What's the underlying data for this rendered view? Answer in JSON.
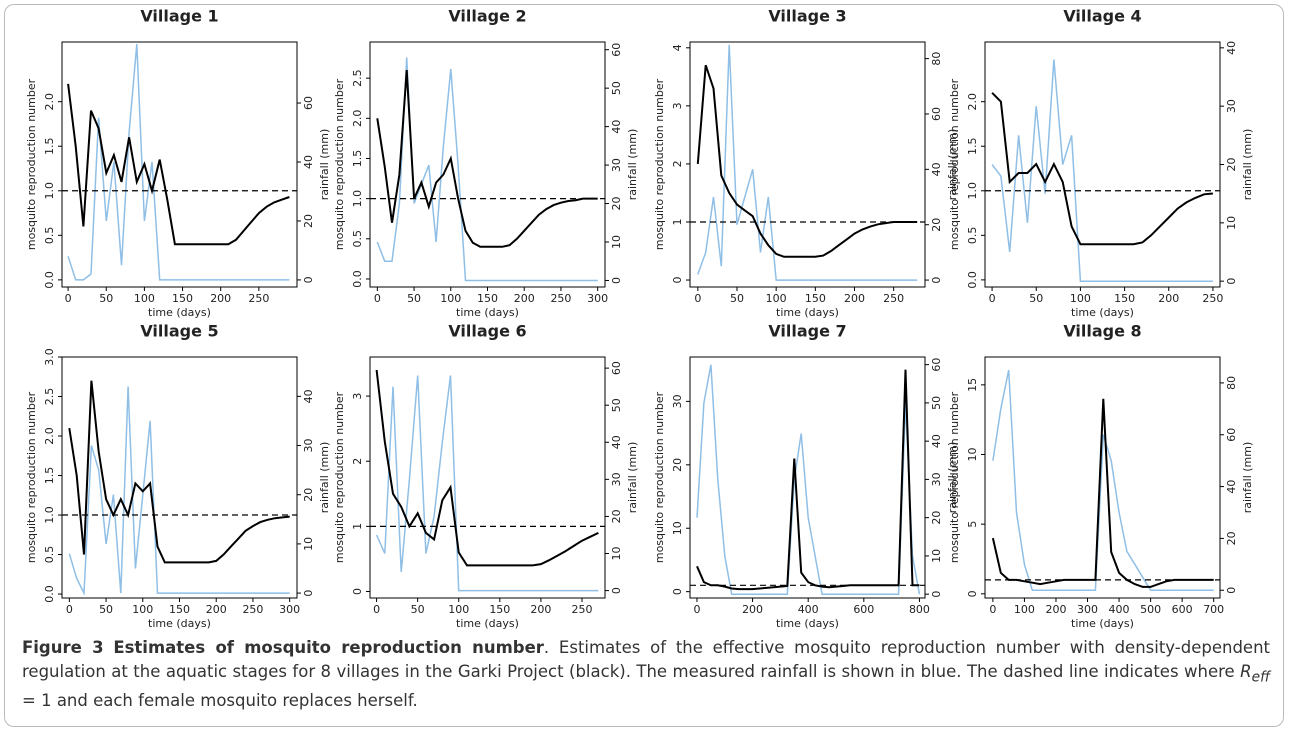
{
  "chart_data": [
    {
      "type": "line",
      "title": "Village 1",
      "xlabel": "time (days)",
      "ylabel": "mosquito reproduction number",
      "y2label": "rainfall (mm)",
      "x": [
        0,
        10,
        20,
        30,
        40,
        50,
        60,
        70,
        80,
        90,
        100,
        110,
        120,
        130,
        140,
        150,
        160,
        170,
        180,
        190,
        200,
        210,
        220,
        230,
        240,
        250,
        260,
        270,
        280,
        290
      ],
      "xlim": [
        -8,
        300
      ],
      "xticks": [
        0,
        50,
        100,
        150,
        200,
        250
      ],
      "ylim": [
        -0.08,
        2.67
      ],
      "yticks": [
        {
          "value": 0,
          "label": "0.0"
        },
        {
          "value": 0.5,
          "label": "0.5"
        },
        {
          "value": 1,
          "label": "1.0"
        },
        {
          "value": 1.5,
          "label": "1.5"
        },
        {
          "value": 2,
          "label": "2.0"
        }
      ],
      "y2lim": [
        -2.4,
        80.7
      ],
      "y2ticks": [
        0,
        20,
        40,
        60
      ],
      "hline": 1,
      "series": [
        {
          "color": "#000000",
          "values": [
            2.2,
            1.5,
            0.6,
            1.9,
            1.7,
            1.2,
            1.4,
            1.1,
            1.6,
            1.1,
            1.3,
            1.0,
            1.35,
            0.9,
            0.4,
            0.4,
            0.4,
            0.4,
            0.4,
            0.4,
            0.4,
            0.4,
            0.45,
            0.55,
            0.65,
            0.75,
            0.82,
            0.87,
            0.9,
            0.93
          ]
        },
        {
          "color": "#8fbfe6",
          "axis": "y2",
          "values": [
            8,
            0,
            0,
            2,
            55,
            20,
            40,
            5,
            50,
            80,
            20,
            40,
            0,
            0,
            0,
            0,
            0,
            0,
            0,
            0,
            0,
            0,
            0,
            0,
            0,
            0,
            0,
            0,
            0,
            0
          ]
        }
      ]
    },
    {
      "type": "line",
      "title": "Village 2",
      "xlabel": "time (days)",
      "ylabel": "mosquito reproduction number",
      "y2label": "rainfall (mm)",
      "x": [
        0,
        10,
        20,
        30,
        40,
        50,
        60,
        70,
        80,
        90,
        100,
        110,
        120,
        130,
        140,
        150,
        160,
        170,
        180,
        190,
        200,
        210,
        220,
        230,
        240,
        250,
        260,
        270,
        280,
        290,
        300
      ],
      "xlim": [
        -10,
        310
      ],
      "xticks": [
        0,
        50,
        100,
        150,
        200,
        250,
        300
      ],
      "ylim": [
        -0.1,
        2.95
      ],
      "yticks": [
        {
          "value": 0,
          "label": "0.0"
        },
        {
          "value": 0.5,
          "label": "0.5"
        },
        {
          "value": 1,
          "label": "1.0"
        },
        {
          "value": 1.5,
          "label": "1.5"
        },
        {
          "value": 2,
          "label": "2.0"
        },
        {
          "value": 2.5,
          "label": "2.5"
        }
      ],
      "y2lim": [
        -1.7,
        62
      ],
      "y2ticks": [
        0,
        10,
        20,
        30,
        40,
        50,
        60
      ],
      "hline": 1,
      "series": [
        {
          "color": "#000000",
          "values": [
            2.0,
            1.4,
            0.7,
            1.3,
            2.6,
            1.0,
            1.2,
            0.9,
            1.2,
            1.3,
            1.5,
            1.0,
            0.6,
            0.45,
            0.4,
            0.4,
            0.4,
            0.4,
            0.42,
            0.5,
            0.6,
            0.7,
            0.8,
            0.87,
            0.92,
            0.95,
            0.97,
            0.98,
            1.0,
            1.0,
            1.0
          ]
        },
        {
          "color": "#8fbfe6",
          "axis": "y2",
          "values": [
            10,
            5,
            5,
            20,
            58,
            20,
            25,
            30,
            10,
            35,
            55,
            30,
            0,
            0,
            0,
            0,
            0,
            0,
            0,
            0,
            0,
            0,
            0,
            0,
            0,
            0,
            0,
            0,
            0,
            0,
            0
          ]
        }
      ]
    },
    {
      "type": "line",
      "title": "Village 3",
      "xlabel": "time (days)",
      "ylabel": "mosquito reproduction number",
      "y2label": "rainfall (mm)",
      "x": [
        0,
        10,
        20,
        30,
        40,
        50,
        60,
        70,
        80,
        90,
        100,
        110,
        120,
        130,
        140,
        150,
        160,
        170,
        180,
        190,
        200,
        210,
        220,
        230,
        240,
        250,
        260,
        270,
        280
      ],
      "xlim": [
        -10,
        290
      ],
      "xticks": [
        0,
        50,
        100,
        150,
        200,
        250
      ],
      "ylim": [
        -0.12,
        4.1
      ],
      "yticks": [
        0,
        1,
        2,
        3,
        4
      ],
      "y2lim": [
        -2.5,
        86
      ],
      "y2ticks": [
        0,
        20,
        40,
        60,
        80
      ],
      "hline": 1,
      "series": [
        {
          "color": "#000000",
          "values": [
            2.0,
            3.7,
            3.3,
            1.8,
            1.5,
            1.3,
            1.2,
            1.1,
            0.8,
            0.6,
            0.45,
            0.4,
            0.4,
            0.4,
            0.4,
            0.4,
            0.42,
            0.5,
            0.6,
            0.7,
            0.8,
            0.87,
            0.92,
            0.96,
            0.98,
            1.0,
            1.0,
            1.0,
            1.0
          ]
        },
        {
          "color": "#8fbfe6",
          "axis": "y2",
          "values": [
            2,
            10,
            30,
            5,
            85,
            20,
            30,
            40,
            10,
            30,
            0,
            0,
            0,
            0,
            0,
            0,
            0,
            0,
            0,
            0,
            0,
            0,
            0,
            0,
            0,
            0,
            0,
            0,
            0
          ]
        }
      ]
    },
    {
      "type": "line",
      "title": "Village 4",
      "xlabel": "time (days)",
      "ylabel": "mosquito reproduction number",
      "y2label": "rainfall (mm)",
      "x": [
        0,
        10,
        20,
        30,
        40,
        50,
        60,
        70,
        80,
        90,
        100,
        110,
        120,
        130,
        140,
        150,
        160,
        170,
        180,
        190,
        200,
        210,
        220,
        230,
        240,
        250
      ],
      "xlim": [
        -8,
        258
      ],
      "xticks": [
        0,
        50,
        100,
        150,
        200,
        250
      ],
      "ylim": [
        -0.08,
        2.67
      ],
      "yticks": [
        {
          "value": 0,
          "label": "0.0"
        },
        {
          "value": 0.5,
          "label": "0.5"
        },
        {
          "value": 1,
          "label": "1.0"
        },
        {
          "value": 1.5,
          "label": "1.5"
        },
        {
          "value": 2,
          "label": "2.0"
        }
      ],
      "y2lim": [
        -1,
        41
      ],
      "y2ticks": [
        0,
        10,
        20,
        30,
        40
      ],
      "hline": 1,
      "series": [
        {
          "color": "#000000",
          "values": [
            2.1,
            2.0,
            1.1,
            1.2,
            1.2,
            1.3,
            1.1,
            1.3,
            1.1,
            0.6,
            0.4,
            0.4,
            0.4,
            0.4,
            0.4,
            0.4,
            0.4,
            0.42,
            0.5,
            0.6,
            0.7,
            0.8,
            0.87,
            0.92,
            0.96,
            0.97
          ]
        },
        {
          "color": "#8fbfe6",
          "axis": "y2",
          "values": [
            20,
            18,
            5,
            25,
            10,
            30,
            15,
            38,
            20,
            25,
            0,
            0,
            0,
            0,
            0,
            0,
            0,
            0,
            0,
            0,
            0,
            0,
            0,
            0,
            0,
            0
          ]
        }
      ]
    },
    {
      "type": "line",
      "title": "Village 5",
      "xlabel": "time (days)",
      "ylabel": "mosquito reproduction number",
      "y2label": "rainfall (mm)",
      "x": [
        0,
        10,
        20,
        30,
        40,
        50,
        60,
        70,
        80,
        90,
        100,
        110,
        120,
        130,
        140,
        150,
        160,
        170,
        180,
        190,
        200,
        210,
        220,
        230,
        240,
        250,
        260,
        270,
        280,
        290,
        300
      ],
      "xlim": [
        -10,
        310
      ],
      "xticks": [
        0,
        50,
        100,
        150,
        200,
        250,
        300
      ],
      "ylim": [
        -0.05,
        3.0
      ],
      "yticks": [
        {
          "value": 0,
          "label": "0.0"
        },
        {
          "value": 0.5,
          "label": "0.5"
        },
        {
          "value": 1,
          "label": "1.0"
        },
        {
          "value": 1.5,
          "label": "1.5"
        },
        {
          "value": 2,
          "label": "2.0"
        },
        {
          "value": 2.5,
          "label": "2.5"
        },
        {
          "value": 3,
          "label": "3.0"
        }
      ],
      "y2lim": [
        -1,
        48
      ],
      "y2ticks": [
        0,
        10,
        20,
        30,
        40
      ],
      "hline": 1,
      "series": [
        {
          "color": "#000000",
          "values": [
            2.1,
            1.5,
            0.5,
            2.7,
            1.8,
            1.2,
            1.0,
            1.2,
            1.0,
            1.4,
            1.3,
            1.4,
            0.6,
            0.4,
            0.4,
            0.4,
            0.4,
            0.4,
            0.4,
            0.4,
            0.42,
            0.5,
            0.6,
            0.7,
            0.8,
            0.86,
            0.91,
            0.94,
            0.96,
            0.97,
            0.98
          ]
        },
        {
          "color": "#8fbfe6",
          "axis": "y2",
          "values": [
            8,
            3,
            0,
            30,
            25,
            10,
            20,
            0,
            42,
            5,
            20,
            35,
            0,
            0,
            0,
            0,
            0,
            0,
            0,
            0,
            0,
            0,
            0,
            0,
            0,
            0,
            0,
            0,
            0,
            0,
            0
          ]
        }
      ]
    },
    {
      "type": "line",
      "title": "Village 6",
      "xlabel": "time (days)",
      "ylabel": "mosquito reproduction number",
      "y2label": "rainfall (mm)",
      "x": [
        0,
        10,
        20,
        30,
        40,
        50,
        60,
        70,
        80,
        90,
        100,
        110,
        120,
        130,
        140,
        150,
        160,
        170,
        180,
        190,
        200,
        210,
        220,
        230,
        240,
        250,
        260,
        270
      ],
      "xlim": [
        -8,
        278
      ],
      "xticks": [
        0,
        50,
        100,
        150,
        200,
        250
      ],
      "ylim": [
        -0.1,
        3.6
      ],
      "yticks": [
        0,
        1,
        2,
        3
      ],
      "y2lim": [
        -2,
        63
      ],
      "y2ticks": [
        0,
        10,
        20,
        30,
        40,
        50,
        60
      ],
      "hline": 1,
      "series": [
        {
          "color": "#000000",
          "values": [
            3.4,
            2.3,
            1.5,
            1.3,
            1.0,
            1.2,
            0.9,
            0.8,
            1.4,
            1.6,
            0.6,
            0.4,
            0.4,
            0.4,
            0.4,
            0.4,
            0.4,
            0.4,
            0.4,
            0.4,
            0.42,
            0.48,
            0.55,
            0.62,
            0.7,
            0.78,
            0.84,
            0.9
          ]
        },
        {
          "color": "#8fbfe6",
          "axis": "y2",
          "values": [
            15,
            10,
            55,
            5,
            30,
            58,
            10,
            20,
            40,
            58,
            0,
            0,
            0,
            0,
            0,
            0,
            0,
            0,
            0,
            0,
            0,
            0,
            0,
            0,
            0,
            0,
            0,
            0
          ]
        }
      ]
    },
    {
      "type": "line",
      "title": "Village 7",
      "xlabel": "time (days)",
      "ylabel": "mosquito reproduction number",
      "y2label": "rainfall (mm)",
      "x": [
        0,
        25,
        50,
        75,
        100,
        125,
        150,
        175,
        200,
        225,
        250,
        275,
        300,
        325,
        350,
        375,
        400,
        425,
        450,
        475,
        500,
        525,
        550,
        575,
        600,
        625,
        650,
        675,
        700,
        725,
        750,
        775,
        800
      ],
      "xlim": [
        -25,
        820
      ],
      "xticks": [
        0,
        200,
        400,
        600,
        800
      ],
      "ylim": [
        -1,
        37
      ],
      "yticks": [
        0,
        10,
        20,
        30
      ],
      "y2lim": [
        -1,
        62
      ],
      "y2ticks": [
        0,
        10,
        20,
        30,
        40,
        50,
        60
      ],
      "hline": 1,
      "series": [
        {
          "color": "#000000",
          "values": [
            4,
            1.5,
            1,
            1,
            0.8,
            0.5,
            0.4,
            0.4,
            0.4,
            0.5,
            0.6,
            0.7,
            0.8,
            0.9,
            21,
            3,
            1.5,
            1,
            0.8,
            0.7,
            0.8,
            0.9,
            1,
            1,
            1,
            1,
            1,
            1,
            1,
            1,
            35,
            1,
            1
          ]
        },
        {
          "color": "#8fbfe6",
          "axis": "y2",
          "values": [
            20,
            50,
            60,
            30,
            10,
            0,
            0,
            0,
            0,
            0,
            0,
            0,
            0,
            0,
            30,
            42,
            20,
            10,
            0,
            0,
            0,
            0,
            0,
            0,
            0,
            0,
            0,
            0,
            0,
            0,
            50,
            10,
            0
          ]
        }
      ]
    },
    {
      "type": "line",
      "title": "Village 8",
      "xlabel": "time (days)",
      "ylabel": "mosquito reproduction number",
      "y2label": "rainfall (mm)",
      "x": [
        0,
        25,
        50,
        75,
        100,
        125,
        150,
        175,
        200,
        225,
        250,
        275,
        300,
        325,
        350,
        375,
        400,
        425,
        450,
        475,
        500,
        525,
        550,
        575,
        600,
        625,
        650,
        675,
        700
      ],
      "xlim": [
        -25,
        720
      ],
      "xticks": [
        0,
        100,
        200,
        300,
        400,
        500,
        600,
        700
      ],
      "ylim": [
        -0.3,
        17
      ],
      "yticks": [
        0,
        5,
        10,
        15
      ],
      "y2lim": [
        -3,
        90
      ],
      "y2ticks": [
        0,
        20,
        40,
        60,
        80
      ],
      "hline": 1,
      "series": [
        {
          "color": "#000000",
          "values": [
            4,
            1.5,
            1,
            1,
            0.9,
            0.8,
            0.7,
            0.8,
            0.9,
            1,
            1,
            1,
            1,
            1,
            14,
            3,
            1.5,
            1,
            0.7,
            0.5,
            0.5,
            0.7,
            0.9,
            1,
            1,
            1,
            1,
            1,
            1
          ]
        },
        {
          "color": "#8fbfe6",
          "axis": "y2",
          "values": [
            50,
            70,
            85,
            30,
            10,
            0,
            0,
            0,
            0,
            0,
            0,
            0,
            0,
            0,
            60,
            50,
            30,
            15,
            10,
            5,
            0,
            0,
            0,
            0,
            0,
            0,
            0,
            0,
            0
          ]
        }
      ]
    }
  ],
  "caption": {
    "label": "Figure 3",
    "title": "Estimates of mosquito reproduction number",
    "text": ". Estimates of the effective mosquito reproduction number with density-dependent regulation at the aquatic stages for 8 villages in the Garki Project (black). The measured rainfall is shown in blue. The dashed line indicates where ",
    "symbol": "R",
    "subscript": "eff",
    "text_end": " = 1 and each female mosquito replaces herself."
  }
}
